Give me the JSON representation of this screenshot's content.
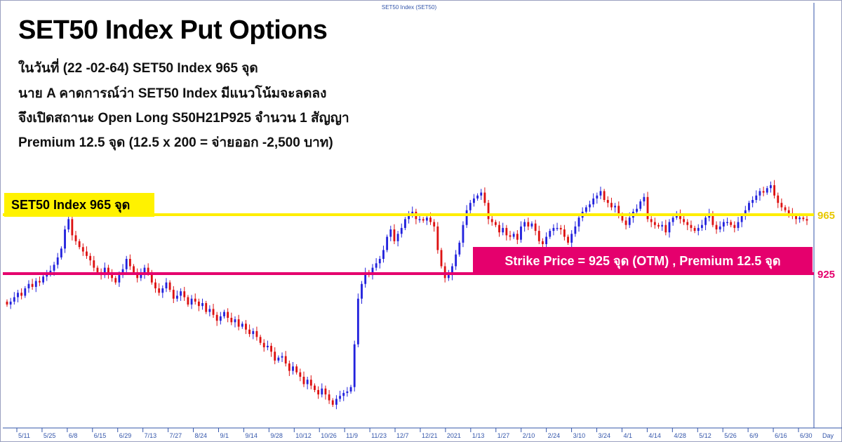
{
  "chart_data": {
    "type": "candlestick",
    "top_label": "SET50 Index (SET50)",
    "title": "SET50 Index Put Options",
    "lines": [
      "ในวันที่ (22 -02-64) SET50 Index 965 จุด",
      "นาย A คาดการณ์ว่า SET50 Index มีแนวโน้มจะลดลง",
      "จึงเปิดสถานะ Open Long S50H21P925 จำนวน 1 สัญญา",
      "Premium 12.5 จุด (12.5 x 200 = จ่ายออก -2,500 บาท)"
    ],
    "index_label": "SET50 Index 965 จุด",
    "strike_label": "Strike Price = 925 จุด (OTM) , Premium 12.5 จุด",
    "hlines": [
      {
        "value": 965,
        "label": "965",
        "color": "#ffee00"
      },
      {
        "value": 925,
        "label": "925",
        "color": "#e5006d"
      }
    ],
    "x_ticks": [
      "5/11",
      "5/25",
      "6/8",
      "6/15",
      "6/29",
      "7/13",
      "7/27",
      "8/24",
      "9/1",
      "9/14",
      "9/28",
      "10/12",
      "10/26",
      "11/9",
      "11/23",
      "12/7",
      "12/21",
      "2021",
      "1/13",
      "1/27",
      "2/10",
      "2/24",
      "3/10",
      "3/24",
      "4/1",
      "4/14",
      "4/28",
      "5/12",
      "5/26",
      "6/9",
      "6/16",
      "6/30"
    ],
    "x_axis_label": "Day",
    "colors": {
      "up": "#2222dd",
      "down": "#dd1111",
      "axis": "#3355aa"
    },
    "close_series": [
      904,
      906,
      909,
      912,
      910,
      915,
      918,
      916,
      920,
      919,
      923,
      925,
      927,
      931,
      936,
      942,
      955,
      962,
      951,
      947,
      943,
      940,
      937,
      934,
      929,
      926,
      924,
      929,
      925,
      922,
      919,
      924,
      928,
      935,
      930,
      926,
      922,
      925,
      929,
      926,
      919,
      915,
      912,
      915,
      919,
      914,
      908,
      910,
      913,
      909,
      904,
      908,
      906,
      903,
      905,
      899,
      901,
      897,
      893,
      896,
      899,
      895,
      892,
      894,
      889,
      891,
      887,
      884,
      886,
      882,
      878,
      875,
      876,
      872,
      866,
      868,
      869,
      864,
      859,
      862,
      858,
      855,
      850,
      853,
      849,
      846,
      843,
      847,
      843,
      839,
      836,
      840,
      842,
      844,
      845,
      848,
      877,
      908,
      918,
      926,
      924,
      929,
      932,
      935,
      941,
      950,
      955,
      947,
      952,
      956,
      962,
      965,
      967,
      962,
      962,
      961,
      963,
      960,
      957,
      941,
      930,
      922,
      924,
      930,
      938,
      946,
      958,
      968,
      973,
      976,
      978,
      980,
      973,
      962,
      960,
      958,
      953,
      956,
      951,
      950,
      952,
      948,
      957,
      960,
      957,
      959,
      954,
      947,
      945,
      950,
      954,
      956,
      956,
      955,
      950,
      946,
      952,
      957,
      963,
      967,
      970,
      972,
      976,
      978,
      981,
      975,
      973,
      970,
      971,
      965,
      961,
      958,
      963,
      967,
      969,
      974,
      977,
      962,
      960,
      958,
      957,
      958,
      953,
      960,
      963,
      966,
      962,
      960,
      958,
      956,
      954,
      956,
      958,
      963,
      966,
      958,
      955,
      957,
      960,
      960,
      958,
      956,
      960,
      964,
      968,
      973,
      975,
      978,
      981,
      980,
      983,
      985,
      978,
      973,
      970,
      968,
      966,
      964,
      962,
      963,
      962,
      961
    ]
  }
}
